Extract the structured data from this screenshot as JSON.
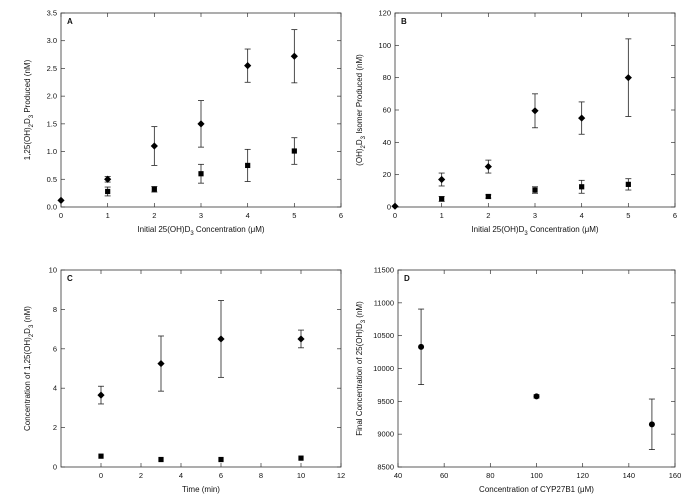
{
  "chart_data": [
    {
      "panel": "A",
      "type": "scatter",
      "xlabel": "Initial 25(OH)D3 Concentration (μM)",
      "ylabel": "1,25(OH)2D3 Produced (nM)",
      "xlim": [
        0,
        6
      ],
      "ylim": [
        0,
        3.5
      ],
      "xticks": [
        0,
        1,
        2,
        3,
        4,
        5,
        6
      ],
      "yticks": [
        0,
        0.5,
        1.0,
        1.5,
        2.0,
        2.5,
        3.0,
        3.5
      ],
      "series": [
        {
          "marker": "diamond",
          "x": [
            0,
            1,
            2,
            3,
            4,
            5
          ],
          "y": [
            0.12,
            0.5,
            1.1,
            1.5,
            2.55,
            2.72
          ],
          "err": [
            0,
            0.05,
            0.35,
            0.42,
            0.3,
            0.48
          ]
        },
        {
          "marker": "square",
          "x": [
            1,
            2,
            3,
            4,
            5
          ],
          "y": [
            0.28,
            0.32,
            0.6,
            0.75,
            1.01
          ],
          "err": [
            0.08,
            0.05,
            0.17,
            0.29,
            0.24
          ]
        }
      ]
    },
    {
      "panel": "B",
      "type": "scatter",
      "xlabel": "Initial 25(OH)D3 Concentration (μM)",
      "ylabel": "(OH)2D3 Isomer Produced (nM)",
      "xlim": [
        0,
        6
      ],
      "ylim": [
        0,
        120
      ],
      "xticks": [
        0,
        1,
        2,
        3,
        4,
        5,
        6
      ],
      "yticks": [
        0,
        20,
        40,
        60,
        80,
        100,
        120
      ],
      "series": [
        {
          "marker": "diamond",
          "x": [
            0,
            1,
            2,
            3,
            4,
            5
          ],
          "y": [
            0.5,
            17,
            25,
            59.5,
            55,
            80
          ],
          "err": [
            0,
            4,
            4,
            10.5,
            10,
            24
          ]
        },
        {
          "marker": "square",
          "x": [
            1,
            2,
            3,
            4,
            5
          ],
          "y": [
            5,
            6.5,
            10.5,
            12.5,
            14
          ],
          "err": [
            1.5,
            1,
            2,
            4,
            3.5
          ]
        }
      ]
    },
    {
      "panel": "C",
      "type": "scatter",
      "xlabel": "Time (min)",
      "ylabel": "Concentration of 1,25(OH)2D3 (nM)",
      "xlim": [
        -2,
        12
      ],
      "ylim": [
        0,
        10
      ],
      "xticks": [
        0,
        2,
        4,
        6,
        8,
        10,
        12
      ],
      "yticks": [
        0,
        2,
        4,
        6,
        8,
        10
      ],
      "series": [
        {
          "marker": "diamond",
          "x": [
            0,
            3,
            6,
            10
          ],
          "y": [
            3.65,
            5.25,
            6.5,
            6.5
          ],
          "err": [
            0.45,
            1.4,
            1.95,
            0.45
          ]
        },
        {
          "marker": "square",
          "x": [
            0,
            3,
            6,
            10
          ],
          "y": [
            0.55,
            0.38,
            0.38,
            0.45
          ],
          "err": [
            0,
            0,
            0,
            0
          ]
        }
      ]
    },
    {
      "panel": "D",
      "type": "scatter",
      "xlabel": "Concentration of CYP27B1 (μM)",
      "ylabel": "Final Concentration of 25(OH)D3 (nM)",
      "xlim": [
        40,
        160
      ],
      "ylim": [
        8500,
        11500
      ],
      "xticks": [
        40,
        60,
        80,
        100,
        120,
        140,
        160
      ],
      "yticks": [
        8500,
        9000,
        9500,
        10000,
        10500,
        11000,
        11500
      ],
      "series": [
        {
          "marker": "circle",
          "x": [
            50,
            100,
            150
          ],
          "y": [
            10330,
            9575,
            9150
          ],
          "err": [
            575,
            25,
            385
          ]
        }
      ]
    }
  ]
}
